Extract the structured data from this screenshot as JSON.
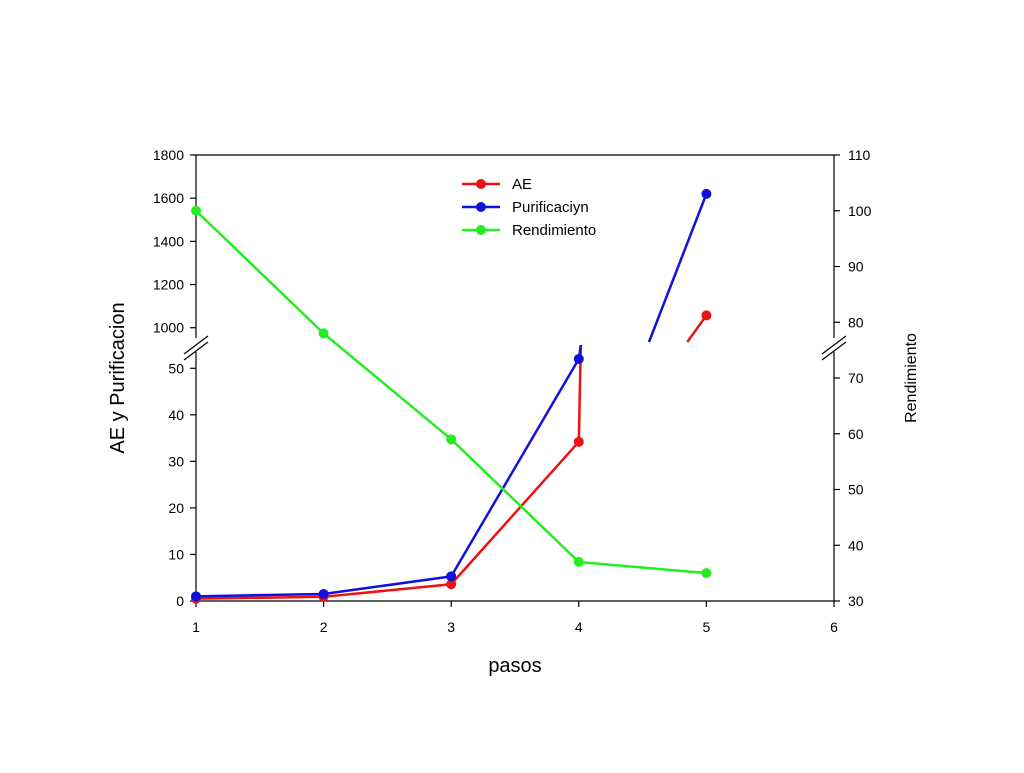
{
  "chart_data": {
    "type": "line",
    "title": "",
    "xlabel": "pasos",
    "ylabel": "AE y Purificacion",
    "y2label": "Rendimiento",
    "xlim": [
      1,
      6
    ],
    "x_ticks": [
      "1",
      "2",
      "3",
      "4",
      "5",
      "6"
    ],
    "y_axis_broken": true,
    "y_lower_range": [
      0,
      55
    ],
    "y_lower_ticks": [
      "0",
      "10",
      "20",
      "30",
      "40",
      "50"
    ],
    "y_upper_range": [
      920,
      1800
    ],
    "y_upper_ticks": [
      "1000",
      "1200",
      "1400",
      "1600",
      "1800"
    ],
    "y2_range": [
      30,
      110
    ],
    "y2_ticks": [
      "30",
      "40",
      "50",
      "60",
      "70",
      "80",
      "90",
      "100",
      "110"
    ],
    "grid": false,
    "legend_position": "top-center",
    "series": [
      {
        "name": "AE",
        "axis": "left",
        "color": "#ee1111",
        "x": [
          1,
          2,
          3,
          4,
          5
        ],
        "y": [
          0.5,
          0.9,
          3.6,
          34.2,
          1057
        ]
      },
      {
        "name": "Purificaciyn",
        "axis": "left",
        "color": "#1111dd",
        "x": [
          1,
          2,
          3,
          4,
          5
        ],
        "y": [
          1.0,
          1.5,
          5.3,
          52.0,
          1620
        ]
      },
      {
        "name": "Rendimiento",
        "axis": "right",
        "color": "#22ee22",
        "x": [
          1,
          2,
          3,
          4,
          5
        ],
        "y": [
          100,
          78,
          59,
          37,
          35
        ]
      }
    ]
  }
}
